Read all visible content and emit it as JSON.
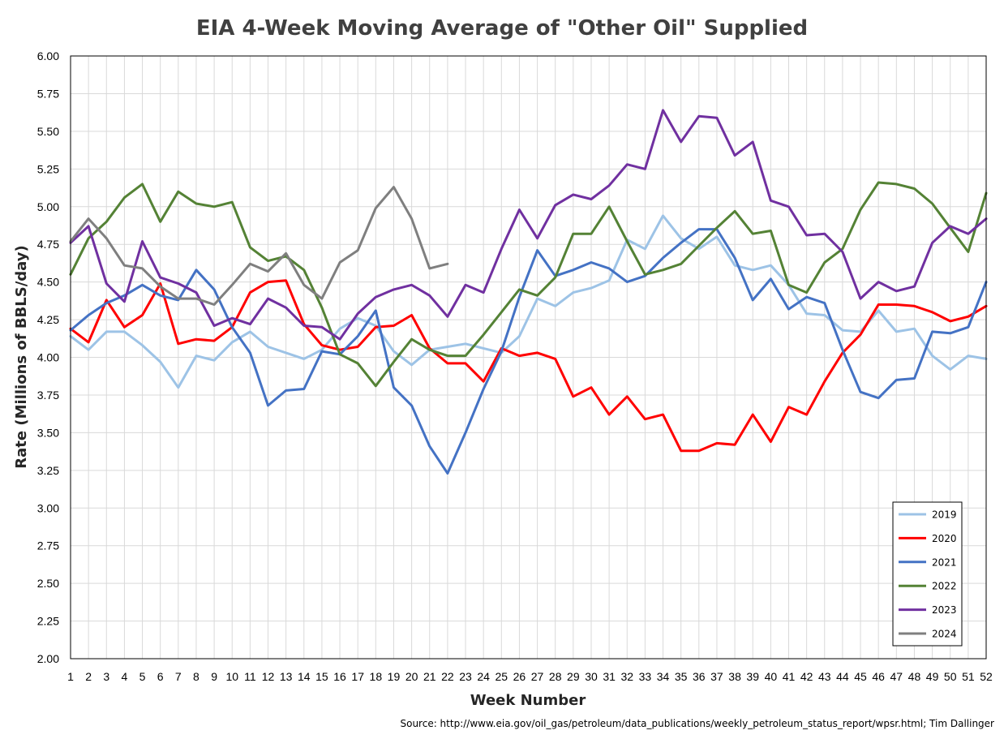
{
  "chart_data": {
    "type": "line",
    "title": "EIA 4-Week Moving Average of \"Other Oil\" Supplied",
    "xlabel": "Week Number",
    "ylabel": "Rate (Millions of BBLS/day)",
    "source": "Source: http://www.eia.gov/oil_gas/petroleum/data_publications/weekly_petroleum_status_report/wpsr.html; Tim Dallinger",
    "ylim": [
      2.0,
      6.0
    ],
    "xlim": [
      1,
      52
    ],
    "grid": true,
    "legend_position": "bottom-right",
    "y_ticks": [
      "2.00",
      "2.25",
      "2.50",
      "2.75",
      "3.00",
      "3.25",
      "3.50",
      "3.75",
      "4.00",
      "4.25",
      "4.50",
      "4.75",
      "5.00",
      "5.25",
      "5.50",
      "5.75",
      "6.00"
    ],
    "x": [
      1,
      2,
      3,
      4,
      5,
      6,
      7,
      8,
      9,
      10,
      11,
      12,
      13,
      14,
      15,
      16,
      17,
      18,
      19,
      20,
      21,
      22,
      23,
      24,
      25,
      26,
      27,
      28,
      29,
      30,
      31,
      32,
      33,
      34,
      35,
      36,
      37,
      38,
      39,
      40,
      41,
      42,
      43,
      44,
      45,
      46,
      47,
      48,
      49,
      50,
      51,
      52
    ],
    "series": [
      {
        "name": "2019",
        "color": "#9DC3E6",
        "values": [
          4.14,
          4.05,
          4.17,
          4.17,
          4.08,
          3.97,
          3.8,
          4.01,
          3.98,
          4.1,
          4.17,
          4.07,
          4.03,
          3.99,
          4.05,
          4.19,
          4.26,
          4.21,
          4.04,
          3.95,
          4.05,
          4.07,
          4.09,
          4.06,
          4.03,
          4.14,
          4.39,
          4.34,
          4.43,
          4.46,
          4.51,
          4.78,
          4.72,
          4.94,
          4.79,
          4.72,
          4.8,
          4.61,
          4.58,
          4.61,
          4.48,
          4.29,
          4.28,
          4.18,
          4.17,
          4.31,
          4.17,
          4.19,
          4.01,
          3.92,
          4.01,
          3.99
        ]
      },
      {
        "name": "2020",
        "color": "#FF0000",
        "values": [
          4.19,
          4.1,
          4.38,
          4.2,
          4.28,
          4.49,
          4.09,
          4.12,
          4.11,
          4.2,
          4.43,
          4.5,
          4.51,
          4.22,
          4.08,
          4.05,
          4.07,
          4.2,
          4.21,
          4.28,
          4.06,
          3.96,
          3.96,
          3.84,
          4.06,
          4.01,
          4.03,
          3.99,
          3.74,
          3.8,
          3.62,
          3.74,
          3.59,
          3.62,
          3.38,
          3.38,
          3.43,
          3.42,
          3.62,
          3.44,
          3.67,
          3.62,
          3.84,
          4.03,
          4.15,
          4.35,
          4.35,
          4.34,
          4.3,
          4.24,
          4.27,
          4.34
        ]
      },
      {
        "name": "2021",
        "color": "#4472C4",
        "values": [
          4.18,
          4.28,
          4.36,
          4.41,
          4.48,
          4.41,
          4.38,
          4.58,
          4.45,
          4.2,
          4.03,
          3.68,
          3.78,
          3.79,
          4.04,
          4.02,
          4.14,
          4.31,
          3.8,
          3.68,
          3.41,
          3.23,
          3.5,
          3.79,
          4.04,
          4.4,
          4.71,
          4.54,
          4.58,
          4.63,
          4.59,
          4.5,
          4.54,
          4.66,
          4.76,
          4.85,
          4.85,
          4.66,
          4.38,
          4.52,
          4.32,
          4.4,
          4.36,
          4.05,
          3.77,
          3.73,
          3.85,
          3.86,
          4.17,
          4.16,
          4.2,
          4.5
        ]
      },
      {
        "name": "2022",
        "color": "#548235",
        "values": [
          4.55,
          4.79,
          4.9,
          5.06,
          5.15,
          4.9,
          5.1,
          5.02,
          5.0,
          5.03,
          4.73,
          4.64,
          4.67,
          4.58,
          4.33,
          4.02,
          3.96,
          3.81,
          3.97,
          4.12,
          4.05,
          4.01,
          4.01,
          4.15,
          4.3,
          4.45,
          4.41,
          4.53,
          4.82,
          4.82,
          5.0,
          4.77,
          4.55,
          4.58,
          4.62,
          4.74,
          4.86,
          4.97,
          4.82,
          4.84,
          4.48,
          4.43,
          4.63,
          4.72,
          4.98,
          5.16,
          5.15,
          5.12,
          5.02,
          4.86,
          4.7,
          5.09
        ]
      },
      {
        "name": "2023",
        "color": "#7030A0",
        "values": [
          4.76,
          4.87,
          4.49,
          4.37,
          4.77,
          4.53,
          4.49,
          4.43,
          4.21,
          4.26,
          4.22,
          4.39,
          4.33,
          4.21,
          4.2,
          4.12,
          4.29,
          4.4,
          4.45,
          4.48,
          4.41,
          4.27,
          4.48,
          4.43,
          4.72,
          4.98,
          4.79,
          5.01,
          5.08,
          5.05,
          5.14,
          5.28,
          5.25,
          5.64,
          5.43,
          5.6,
          5.59,
          5.34,
          5.43,
          5.04,
          5.0,
          4.81,
          4.82,
          4.7,
          4.39,
          4.5,
          4.44,
          4.47,
          4.76,
          4.87,
          4.82,
          4.92
        ]
      },
      {
        "name": "2024",
        "color": "#7F7F7F",
        "values": [
          4.77,
          4.92,
          4.79,
          4.61,
          4.59,
          4.47,
          4.39,
          4.39,
          4.35,
          4.48,
          4.62,
          4.57,
          4.69,
          4.48,
          4.39,
          4.63,
          4.71,
          4.99,
          5.13,
          4.92,
          4.59,
          4.62,
          null,
          null,
          null,
          null,
          null,
          null,
          null,
          null,
          null,
          null,
          null,
          null,
          null,
          null,
          null,
          null,
          null,
          null,
          null,
          null,
          null,
          null,
          null,
          null,
          null,
          null,
          null,
          null,
          null,
          null
        ]
      }
    ]
  }
}
